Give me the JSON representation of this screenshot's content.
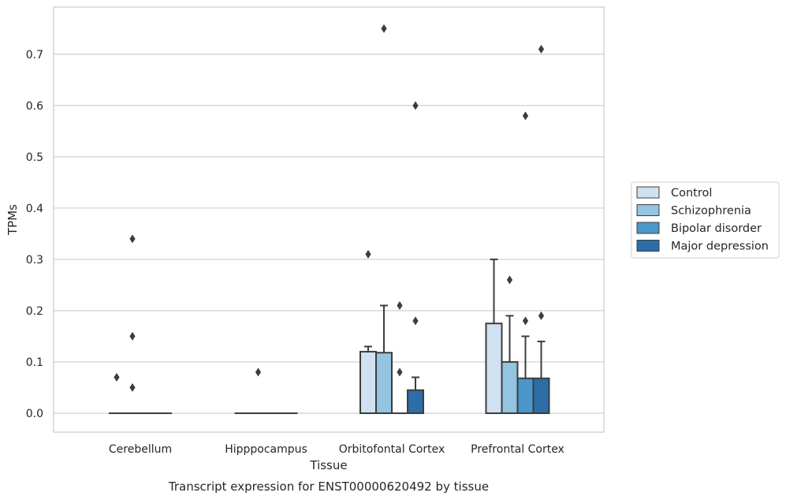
{
  "chart_data": {
    "type": "box",
    "caption": "Transcript expression for ENST00000620492 by tissue",
    "xlabel": "Tissue",
    "ylabel": "TPMs",
    "ylim": [
      -0.037,
      0.792
    ],
    "yticks": [
      0.0,
      0.1,
      0.2,
      0.3,
      0.4,
      0.5,
      0.6,
      0.7
    ],
    "ytick_labels": [
      "0.0",
      "0.1",
      "0.2",
      "0.3",
      "0.4",
      "0.5",
      "0.6",
      "0.7"
    ],
    "grid": "horizontal",
    "legend_position": "outside-right",
    "categories": [
      "Cerebellum",
      "Hipppocampus",
      "Orbitofontal Cortex",
      "Prefrontal Cortex"
    ],
    "series": [
      {
        "name": "Control",
        "color": "#d0e1f2",
        "boxes": [
          {
            "q1": 0,
            "median": 0,
            "q3": 0,
            "whisker_low": 0,
            "whisker_high": 0,
            "outliers": [
              0.07
            ]
          },
          {
            "q1": 0,
            "median": 0,
            "q3": 0,
            "whisker_low": 0,
            "whisker_high": 0,
            "outliers": []
          },
          {
            "q1": 0,
            "median": 0,
            "q3": 0.12,
            "whisker_low": 0,
            "whisker_high": 0.13,
            "outliers": [
              0.31
            ]
          },
          {
            "q1": 0,
            "median": 0,
            "q3": 0.175,
            "whisker_low": 0,
            "whisker_high": 0.3,
            "outliers": []
          }
        ]
      },
      {
        "name": "Schizophrenia",
        "color": "#94c4df",
        "boxes": [
          {
            "q1": 0,
            "median": 0,
            "q3": 0,
            "whisker_low": 0,
            "whisker_high": 0,
            "outliers": [
              0.05,
              0.15,
              0.34
            ]
          },
          {
            "q1": 0,
            "median": 0,
            "q3": 0,
            "whisker_low": 0,
            "whisker_high": 0,
            "outliers": [
              0.08
            ]
          },
          {
            "q1": 0,
            "median": 0,
            "q3": 0.118,
            "whisker_low": 0,
            "whisker_high": 0.21,
            "outliers": [
              0.75
            ]
          },
          {
            "q1": 0,
            "median": 0,
            "q3": 0.1,
            "whisker_low": 0,
            "whisker_high": 0.19,
            "outliers": [
              0.26
            ]
          }
        ]
      },
      {
        "name": "Bipolar disorder",
        "color": "#4a98c9",
        "boxes": [
          {
            "q1": 0,
            "median": 0,
            "q3": 0,
            "whisker_low": 0,
            "whisker_high": 0,
            "outliers": []
          },
          {
            "q1": 0,
            "median": 0,
            "q3": 0,
            "whisker_low": 0,
            "whisker_high": 0,
            "outliers": []
          },
          {
            "q1": 0,
            "median": 0,
            "q3": 0,
            "whisker_low": 0,
            "whisker_high": 0,
            "outliers": [
              0.08,
              0.21
            ]
          },
          {
            "q1": 0,
            "median": 0,
            "q3": 0.068,
            "whisker_low": 0,
            "whisker_high": 0.15,
            "outliers": [
              0.18,
              0.58
            ]
          }
        ]
      },
      {
        "name": "Major depression",
        "color": "#2d6ea8",
        "boxes": [
          {
            "q1": 0,
            "median": 0,
            "q3": 0,
            "whisker_low": 0,
            "whisker_high": 0,
            "outliers": []
          },
          {
            "q1": 0,
            "median": 0,
            "q3": 0,
            "whisker_low": 0,
            "whisker_high": 0,
            "outliers": []
          },
          {
            "q1": 0,
            "median": 0,
            "q3": 0.045,
            "whisker_low": 0,
            "whisker_high": 0.07,
            "outliers": [
              0.18,
              0.6
            ]
          },
          {
            "q1": 0,
            "median": 0,
            "q3": 0.068,
            "whisker_low": 0,
            "whisker_high": 0.14,
            "outliers": [
              0.19,
              0.71
            ]
          }
        ]
      }
    ]
  }
}
